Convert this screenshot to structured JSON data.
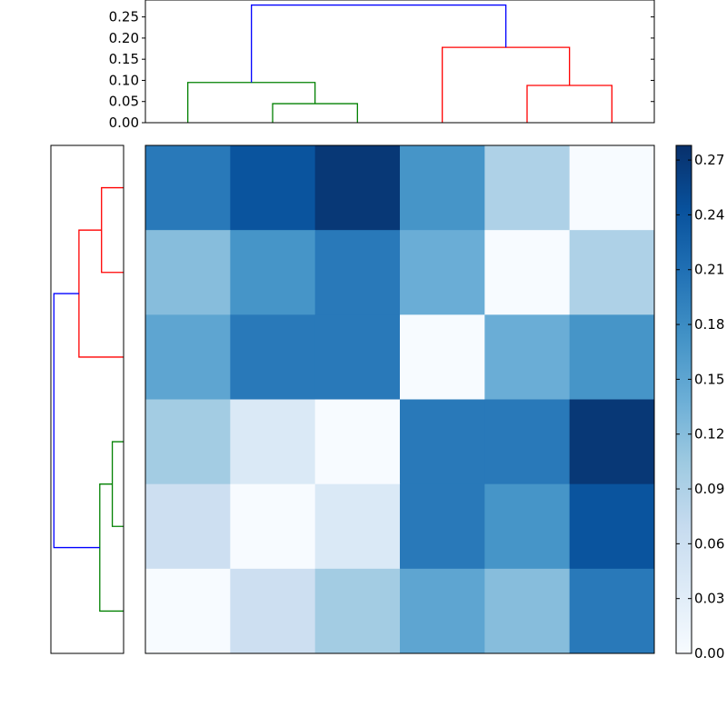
{
  "chart_data": [
    {
      "type": "dendrogram",
      "orientation": "top",
      "yticks": [
        "0.00",
        "0.05",
        "0.10",
        "0.15",
        "0.20",
        "0.25"
      ],
      "ylim": [
        0,
        0.29
      ],
      "leaf_count": 6,
      "links": [
        {
          "x": [
            1,
            2
          ],
          "h_left": 0.0,
          "h_right": 0.0,
          "h": 0.045,
          "color": "#008000"
        },
        {
          "x": [
            0,
            1.5
          ],
          "h_left": 0.0,
          "h_right": 0.045,
          "h": 0.095,
          "color": "#008000"
        },
        {
          "x": [
            4,
            5
          ],
          "h_left": 0.0,
          "h_right": 0.0,
          "h": 0.088,
          "color": "#ff0000"
        },
        {
          "x": [
            3,
            4.5
          ],
          "h_left": 0.0,
          "h_right": 0.088,
          "h": 0.178,
          "color": "#ff0000"
        },
        {
          "x": [
            0.75,
            3.75
          ],
          "h_left": 0.095,
          "h_right": 0.178,
          "h": 0.278,
          "color": "#0000ff"
        }
      ]
    },
    {
      "type": "dendrogram",
      "orientation": "left",
      "leaf_count": 6,
      "xlim": [
        0,
        0.29
      ],
      "links": [
        {
          "x": [
            0,
            1
          ],
          "h_left": 0.0,
          "h_right": 0.0,
          "h": 0.088,
          "color": "#ff0000"
        },
        {
          "x": [
            0.5,
            2
          ],
          "h_left": 0.088,
          "h_right": 0.0,
          "h": 0.178,
          "color": "#ff0000"
        },
        {
          "x": [
            3,
            4
          ],
          "h_left": 0.0,
          "h_right": 0.0,
          "h": 0.045,
          "color": "#008000"
        },
        {
          "x": [
            3.5,
            5
          ],
          "h_left": 0.045,
          "h_right": 0.0,
          "h": 0.095,
          "color": "#008000"
        },
        {
          "x": [
            1.25,
            4.25
          ],
          "h_left": 0.178,
          "h_right": 0.095,
          "h": 0.278,
          "color": "#0000ff"
        }
      ]
    },
    {
      "type": "heatmap",
      "rows": 6,
      "cols": 6,
      "values": [
        [
          0.2,
          0.24,
          0.27,
          0.17,
          0.09,
          0.0
        ],
        [
          0.12,
          0.17,
          0.2,
          0.14,
          0.0,
          0.09
        ],
        [
          0.15,
          0.2,
          0.2,
          0.0,
          0.14,
          0.17
        ],
        [
          0.1,
          0.04,
          0.0,
          0.2,
          0.2,
          0.27
        ],
        [
          0.06,
          0.0,
          0.04,
          0.2,
          0.17,
          0.24
        ],
        [
          0.0,
          0.06,
          0.1,
          0.15,
          0.12,
          0.2
        ]
      ],
      "colormap": "Blues",
      "vmin": 0,
      "vmax": 0.278,
      "colorbar_ticks": [
        "0.00",
        "0.03",
        "0.06",
        "0.09",
        "0.12",
        "0.15",
        "0.18",
        "0.21",
        "0.24",
        "0.27"
      ]
    }
  ]
}
